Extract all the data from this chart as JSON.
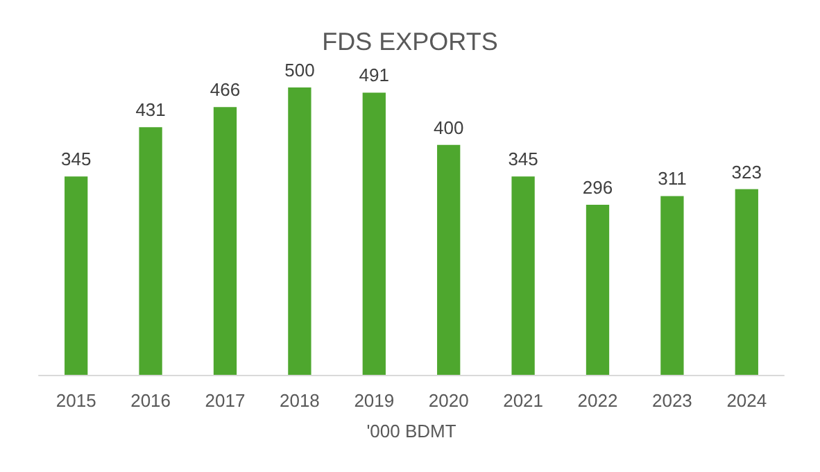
{
  "chart_data": {
    "type": "bar",
    "title": "FDS EXPORTS",
    "xlabel": "'000 BDMT",
    "categories": [
      "2015",
      "2016",
      "2017",
      "2018",
      "2019",
      "2020",
      "2021",
      "2022",
      "2023",
      "2024"
    ],
    "values": [
      345,
      431,
      466,
      500,
      491,
      400,
      345,
      296,
      311,
      323
    ],
    "color": "#4ea72e",
    "data_labels": true
  }
}
